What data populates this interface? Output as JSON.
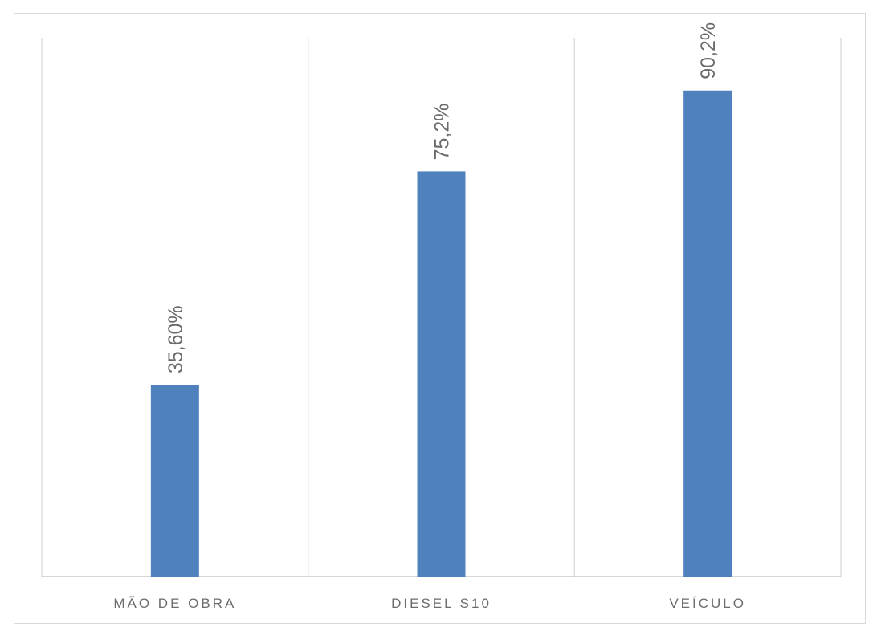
{
  "chart_data": {
    "type": "bar",
    "categories": [
      "MÃO DE OBRA",
      "DIESEL S10",
      "VEÍCULO"
    ],
    "values": [
      35.6,
      75.2,
      90.2
    ],
    "data_labels": [
      "35,60%",
      "75,2%",
      "90,2%"
    ],
    "ylim": [
      0,
      100
    ],
    "grid": "vertical-category-separators",
    "legend": "none",
    "bar_color": "#4f81bd",
    "data_label_orientation": "vertical"
  }
}
